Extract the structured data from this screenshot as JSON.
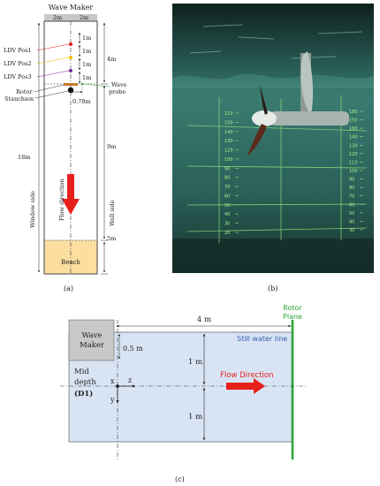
{
  "panel_a": {
    "label": "(a)",
    "title": "Wave Maker",
    "width_left": "2m",
    "width_right": "2m",
    "ldv": [
      "LDV Pos1",
      "LDV Pos2",
      "LDV Pos3"
    ],
    "rotor": "Rotor",
    "stanchion": "Stanchion",
    "wave_probe_1": "Wave",
    "wave_probe_2": "probe",
    "offset": "0.78m",
    "one_m": "1m",
    "four_m": "4m",
    "nine_m": "9m",
    "five_m": "5m",
    "eighteen_m": "18m",
    "window_side": "Window side",
    "wall_side": "Wall side",
    "flow_direction": "Flow direction",
    "beach": "Beach"
  },
  "panel_b": {
    "label": "(b)",
    "left_scale": [
      "110",
      "150",
      "140",
      "130",
      "120",
      "100",
      "90",
      "80",
      "70",
      "60",
      "50",
      "40",
      "30",
      "20"
    ],
    "right_scale": [
      "180",
      "150",
      "160",
      "140",
      "130",
      "120",
      "110",
      "100",
      "90",
      "80",
      "70",
      "60",
      "50",
      "40",
      "30"
    ]
  },
  "panel_c": {
    "label": "(c)",
    "rotor_1": "Rotor",
    "rotor_2": "Plane",
    "four_m": "4 m",
    "wave_maker_1": "Wave",
    "wave_maker_2": "Maker",
    "half_m": "0.5 m",
    "still_water": "Still water line",
    "one_m_top": "1 m",
    "one_m_bottom": "1 m",
    "mid_1": "Mid",
    "mid_2": "depth",
    "mid_3": "(D1)",
    "x": "x",
    "y": "y",
    "z": "z",
    "flow_direction": "Flow Direction"
  },
  "colors": {
    "ldv1": "#e0201b",
    "ldv2": "#f2c200",
    "ldv3": "#7a2c9a",
    "flow_arrow": "#e8201b",
    "beach": "#fbdea0",
    "water": "#d8e4f4",
    "rotor_plane": "#2aa63a",
    "wave_probe": "#3a9a3a",
    "wave_maker": "#c8c8c8"
  }
}
